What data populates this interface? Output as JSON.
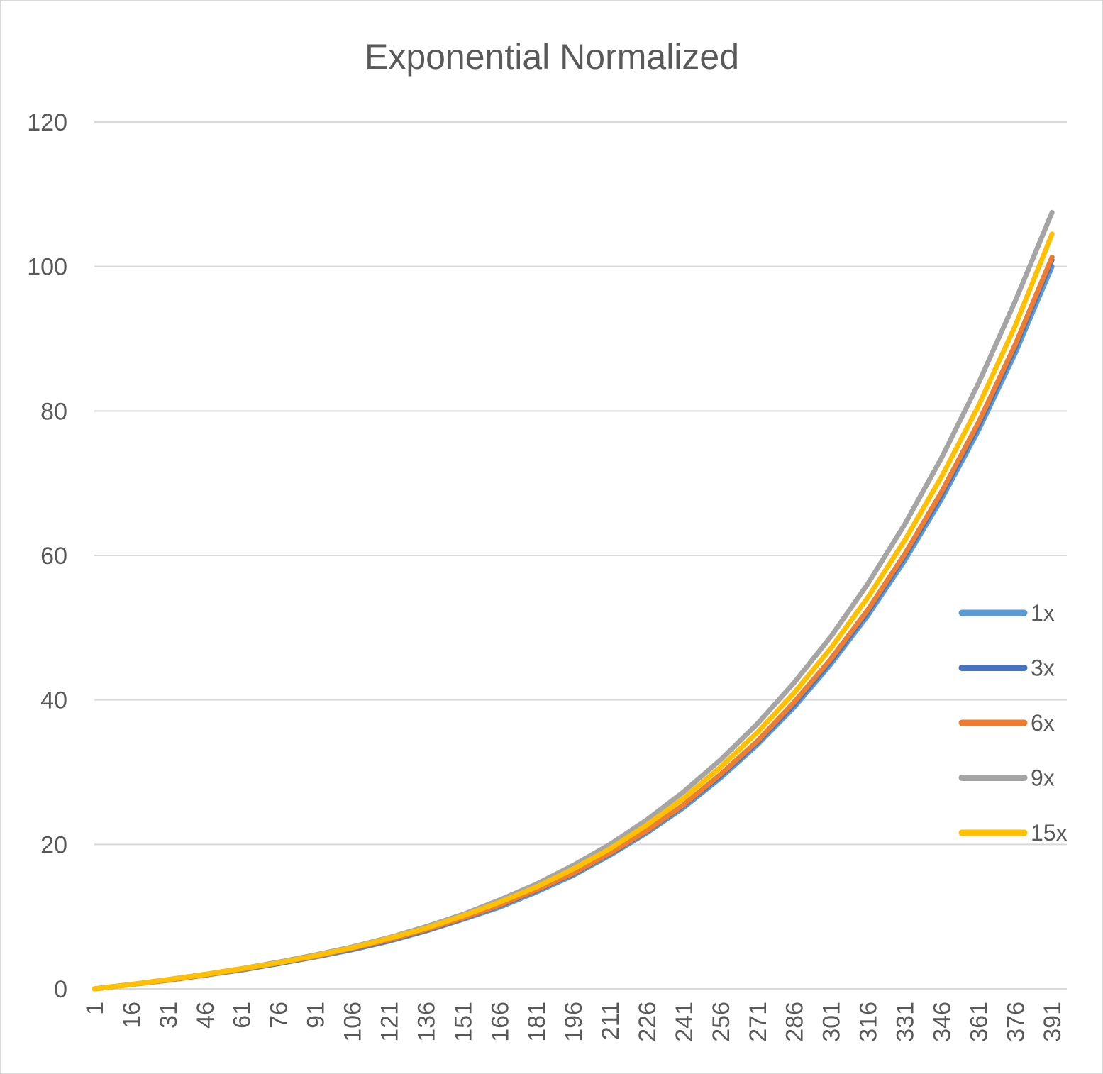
{
  "chart_data": {
    "type": "line",
    "title": "Exponential Normalized",
    "xlabel": "",
    "ylabel": "",
    "ylim": [
      0,
      120
    ],
    "yticks": [
      0,
      20,
      40,
      60,
      80,
      100,
      120
    ],
    "x": [
      1,
      16,
      31,
      46,
      61,
      76,
      91,
      106,
      121,
      136,
      151,
      166,
      181,
      196,
      211,
      226,
      241,
      256,
      271,
      286,
      301,
      316,
      331,
      346,
      361,
      376,
      391
    ],
    "x_max": 397,
    "grid": true,
    "legend_position": "right",
    "series": [
      {
        "name": "1x",
        "color": "#5B9BD5",
        "values": [
          0,
          0.6,
          1.2,
          1.9,
          2.6,
          3.5,
          4.4,
          5.4,
          6.6,
          8.0,
          9.6,
          11.3,
          13.4,
          15.7,
          18.5,
          21.6,
          25.1,
          29.2,
          33.8,
          39.0,
          45.0,
          51.7,
          59.3,
          67.8,
          77.3,
          88.0,
          100.0
        ]
      },
      {
        "name": "3x",
        "color": "#4472C4",
        "values": [
          0,
          0.6,
          1.2,
          1.9,
          2.7,
          3.5,
          4.5,
          5.5,
          6.7,
          8.1,
          9.7,
          11.5,
          13.6,
          15.9,
          18.7,
          21.8,
          25.4,
          29.5,
          34.1,
          39.4,
          45.4,
          52.2,
          59.9,
          68.4,
          78.0,
          88.8,
          100.9
        ]
      },
      {
        "name": "6x",
        "color": "#ED7D31",
        "values": [
          0,
          0.6,
          1.2,
          1.9,
          2.7,
          3.6,
          4.5,
          5.6,
          6.8,
          8.2,
          9.8,
          11.6,
          13.7,
          16.0,
          18.8,
          21.9,
          25.5,
          29.7,
          34.3,
          39.7,
          45.7,
          52.5,
          60.2,
          68.8,
          78.4,
          89.2,
          101.3
        ]
      },
      {
        "name": "9x",
        "color": "#A5A5A5",
        "values": [
          0,
          0.6,
          1.3,
          2.0,
          2.8,
          3.7,
          4.7,
          5.8,
          7.1,
          8.6,
          10.3,
          12.3,
          14.5,
          17.1,
          20.0,
          23.4,
          27.3,
          31.7,
          36.7,
          42.4,
          48.8,
          56.1,
          64.3,
          73.5,
          83.8,
          95.2,
          107.5
        ]
      },
      {
        "name": "15x",
        "color": "#FFC000",
        "values": [
          0,
          0.6,
          1.3,
          2.0,
          2.8,
          3.6,
          4.6,
          5.7,
          7.0,
          8.4,
          10.1,
          12.0,
          14.1,
          16.6,
          19.4,
          22.7,
          26.4,
          30.7,
          35.5,
          41.0,
          47.2,
          54.2,
          62.1,
          70.9,
          80.7,
          91.8,
          104.5
        ]
      }
    ]
  }
}
